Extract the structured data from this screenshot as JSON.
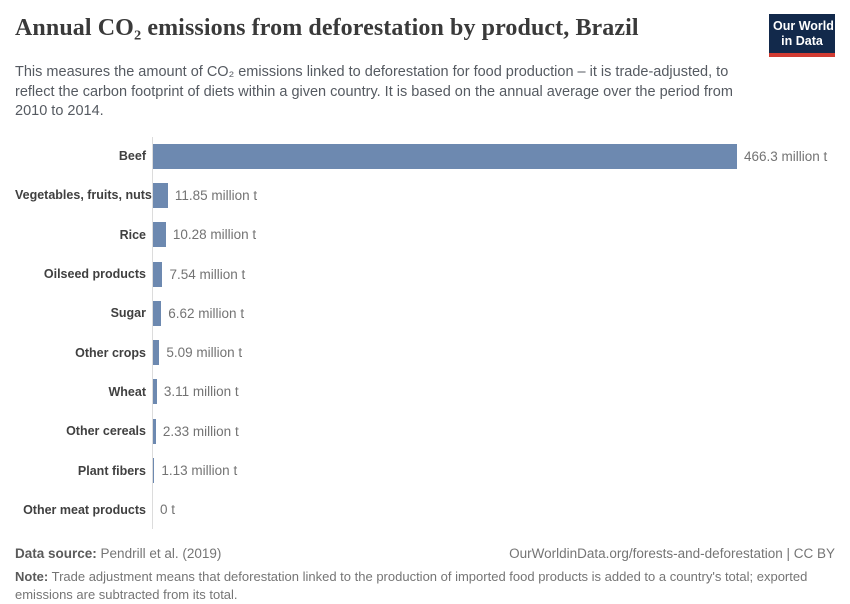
{
  "header": {
    "title": "Annual CO₂ emissions from deforestation by product, Brazil",
    "subtitle": "This measures the amount of CO₂ emissions linked to deforestation for food production – it is trade-adjusted, to reflect the carbon footprint of diets within a given country. It is based on the annual average over the period from 2010 to 2014.",
    "logo": {
      "line1": "Our World",
      "line2": "in Data",
      "background": "#12294b",
      "accent": "#d13b32"
    }
  },
  "chart_data": {
    "type": "bar",
    "orientation": "horizontal",
    "title": "Annual CO₂ emissions from deforestation by product, Brazil",
    "unit": "million t",
    "xlim": [
      0,
      466.3
    ],
    "grid": false,
    "legend": "none",
    "bar_color": "#6d89b0",
    "categories": [
      "Beef",
      "Vegetables, fruits, nuts",
      "Rice",
      "Oilseed products",
      "Sugar",
      "Other crops",
      "Wheat",
      "Other cereals",
      "Plant fibers",
      "Other meat products"
    ],
    "values": [
      466.3,
      11.85,
      10.28,
      7.54,
      6.62,
      5.09,
      3.11,
      2.33,
      1.13,
      0
    ],
    "value_labels": [
      "466.3 million t",
      "11.85 million t",
      "10.28 million t",
      "7.54 million t",
      "6.62 million t",
      "5.09 million t",
      "3.11 million t",
      "2.33 million t",
      "1.13 million t",
      "0 t"
    ]
  },
  "footer": {
    "data_source_label": "Data source:",
    "data_source": "Pendrill et al. (2019)",
    "link": "OurWorldinData.org/forests-and-deforestation | CC BY",
    "note_label": "Note:",
    "note": "Trade adjustment means that deforestation linked to the production of imported food products is added to a country's total; exported emissions are subtracted from its total."
  }
}
